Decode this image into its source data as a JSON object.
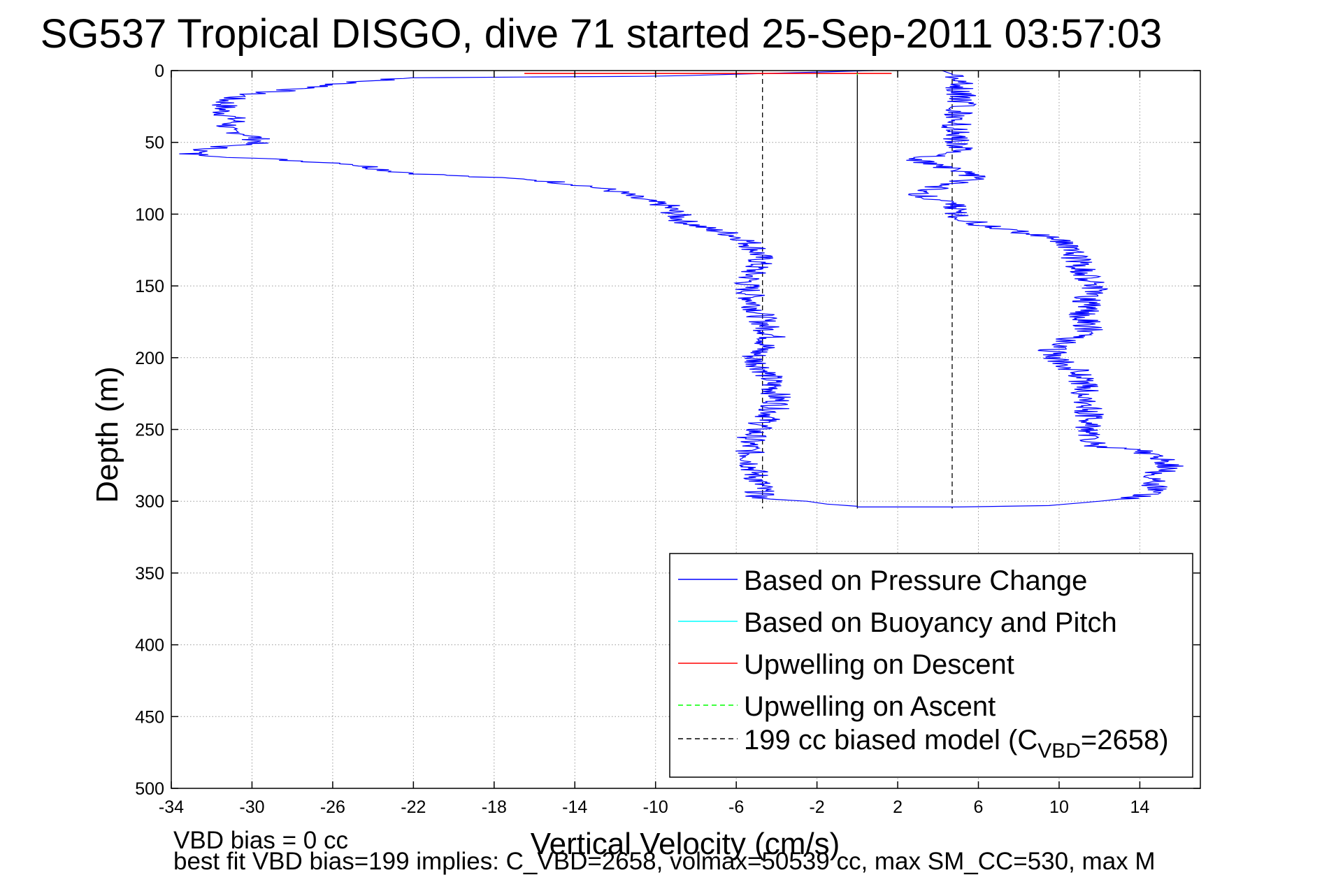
{
  "chart_data": {
    "type": "line",
    "title": "SG537 Tropical DISGO, dive 71 started 25-Sep-2011 03:57:03",
    "xlabel": "Vertical Velocity (cm/s)",
    "ylabel": "Depth (m)",
    "xlim": [
      -34,
      17
    ],
    "ylim": [
      0,
      500
    ],
    "y_reversed": true,
    "grid": true,
    "legend_position": "bottom-right",
    "x_tick_labels": [
      "-34",
      "-30",
      "-26",
      "-22",
      "-18",
      "-14",
      "-10",
      "-6",
      "-2",
      "2",
      "6",
      "10",
      "14"
    ],
    "y_tick_labels": [
      "0",
      "50",
      "100",
      "150",
      "200",
      "250",
      "300",
      "350",
      "400",
      "450",
      "500"
    ],
    "series": [
      {
        "name": "Based on Pressure Change",
        "color": "#0000ff",
        "style": "solid",
        "segments": [
          {
            "phase": "descent",
            "points": [
              [
                0.8,
                0
              ],
              [
                -10,
                4
              ],
              [
                -22,
                5
              ],
              [
                -25,
                8
              ],
              [
                -27,
                12
              ],
              [
                -30,
                16
              ],
              [
                -31.2,
                20
              ],
              [
                -31.5,
                28
              ],
              [
                -30.8,
                35
              ],
              [
                -31.5,
                41
              ],
              [
                -30,
                45
              ],
              [
                -29.6,
                50
              ],
              [
                -31.5,
                53
              ],
              [
                -33.2,
                58
              ],
              [
                -30,
                61
              ],
              [
                -25,
                65
              ],
              [
                -23,
                70
              ],
              [
                -21.5,
                72
              ],
              [
                -19,
                74
              ],
              [
                -16,
                76
              ],
              [
                -13.5,
                80
              ],
              [
                -12,
                84
              ],
              [
                -11,
                89
              ],
              [
                -9.5,
                94
              ],
              [
                -9,
                100
              ],
              [
                -8.6,
                105
              ],
              [
                -7.5,
                110
              ],
              [
                -6.5,
                113
              ],
              [
                -5.5,
                118
              ],
              [
                -5,
                125
              ],
              [
                -4.8,
                132
              ],
              [
                -5.2,
                140
              ],
              [
                -5.5,
                150
              ],
              [
                -5.2,
                160
              ],
              [
                -4.8,
                170
              ],
              [
                -4.5,
                180
              ],
              [
                -4.2,
                185
              ],
              [
                -4.8,
                195
              ],
              [
                -5.2,
                200
              ],
              [
                -4.5,
                210
              ],
              [
                -4.2,
                220
              ],
              [
                -3.9,
                230
              ],
              [
                -4.3,
                240
              ],
              [
                -5,
                250
              ],
              [
                -5.4,
                260
              ],
              [
                -5.3,
                270
              ],
              [
                -5.1,
                280
              ],
              [
                -4.8,
                290
              ],
              [
                -4.9,
                298
              ],
              [
                -2.5,
                300
              ],
              [
                -1.5,
                302
              ],
              [
                0,
                303.5
              ]
            ]
          },
          {
            "phase": "ascent",
            "points": [
              [
                0,
                304
              ],
              [
                5,
                304
              ],
              [
                9.5,
                303
              ],
              [
                12,
                300
              ],
              [
                14,
                297
              ],
              [
                15,
                292
              ],
              [
                14.6,
                285
              ],
              [
                15,
                280
              ],
              [
                15.5,
                275
              ],
              [
                15,
                270
              ],
              [
                14,
                265
              ],
              [
                12,
                262
              ],
              [
                11.6,
                258
              ],
              [
                11.4,
                250
              ],
              [
                11.5,
                240
              ],
              [
                11.4,
                230
              ],
              [
                11.2,
                220
              ],
              [
                11,
                210
              ],
              [
                10.2,
                205
              ],
              [
                9.6,
                195
              ],
              [
                10.8,
                185
              ],
              [
                11.5,
                180
              ],
              [
                11.2,
                170
              ],
              [
                11.4,
                160
              ],
              [
                11.8,
                150
              ],
              [
                11.2,
                140
              ],
              [
                10.8,
                130
              ],
              [
                10.5,
                122
              ],
              [
                9.5,
                116
              ],
              [
                8,
                112
              ],
              [
                6,
                107
              ],
              [
                4.8,
                100
              ],
              [
                4.6,
                92
              ],
              [
                3,
                86
              ],
              [
                4.3,
                80
              ],
              [
                6,
                74
              ],
              [
                4.5,
                68
              ],
              [
                3,
                62
              ],
              [
                4,
                58
              ],
              [
                5,
                55
              ],
              [
                5,
                50
              ],
              [
                4.9,
                40
              ],
              [
                5,
                30
              ],
              [
                5.2,
                20
              ],
              [
                5.1,
                10
              ],
              [
                5,
                4
              ],
              [
                4.2,
                0
              ]
            ]
          }
        ]
      },
      {
        "name": "Based on Buoyancy and Pitch",
        "color": "#00ffff",
        "style": "solid",
        "x": [],
        "y": []
      },
      {
        "name": "Upwelling on Descent",
        "color": "#ff0000",
        "style": "solid",
        "x": [
          -16.5,
          1.7
        ],
        "y": [
          2,
          2
        ]
      },
      {
        "name": "Upwelling on Ascent",
        "color": "#00ff00",
        "style": "dashed",
        "x": [
          0,
          0
        ],
        "y": [
          2,
          3
        ]
      },
      {
        "name": "199 cc biased model (C_VBD=2658)",
        "legend_main": "199 cc biased model (C",
        "legend_sub": "VBD",
        "legend_tail": "=2658)",
        "color": "#000000",
        "style": "dashed",
        "x": [
          -4.7,
          -4.7,
          4.7,
          4.7
        ],
        "y": [
          0,
          305,
          0,
          305
        ]
      }
    ],
    "reference_line": {
      "x": 0,
      "y_range": [
        0,
        305
      ],
      "color": "#000000"
    }
  },
  "footer": {
    "line1": "VBD bias = 0 cc",
    "line2": "best fit VBD bias=199 implies: C_VBD=2658, volmax=50539 cc, max SM_CC=530, max M"
  }
}
